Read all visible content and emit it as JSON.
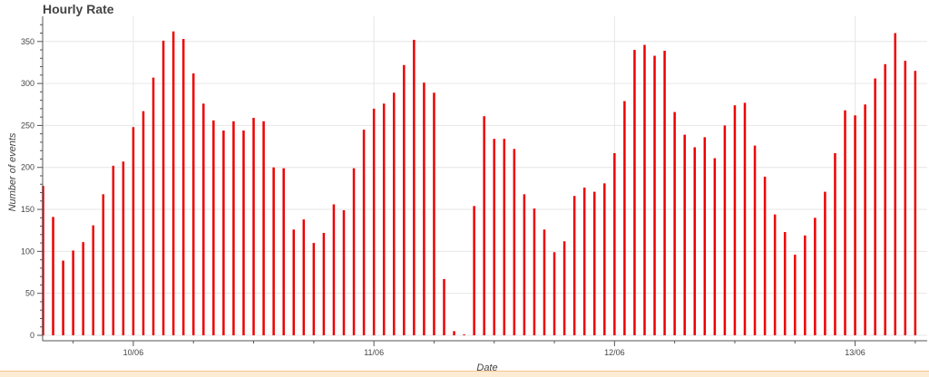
{
  "chart_data": {
    "type": "bar",
    "title": "Hourly Rate",
    "xlabel": "Date",
    "ylabel": "Number of events",
    "ylim": [
      0,
      380
    ],
    "yticks": [
      0,
      50,
      100,
      150,
      200,
      250,
      300,
      350
    ],
    "xticks": [
      {
        "label": "10/06",
        "index": 9
      },
      {
        "label": "11/06",
        "index": 33
      },
      {
        "label": "12/06",
        "index": 57
      },
      {
        "label": "13/06",
        "index": 81
      }
    ],
    "grid": true,
    "bar_color": "#ee0000",
    "values": [
      178,
      141,
      89,
      101,
      111,
      131,
      168,
      202,
      207,
      248,
      267,
      307,
      351,
      362,
      353,
      312,
      276,
      256,
      244,
      255,
      244,
      259,
      255,
      200,
      199,
      126,
      138,
      110,
      122,
      156,
      149,
      199,
      245,
      270,
      276,
      289,
      322,
      352,
      301,
      289,
      67,
      5,
      1,
      154,
      261,
      234,
      234,
      222,
      168,
      151,
      126,
      99,
      112,
      166,
      176,
      171,
      181,
      217,
      279,
      340,
      346,
      333,
      339,
      266,
      239,
      224,
      236,
      211,
      250,
      274,
      277,
      226,
      189,
      144,
      123,
      96,
      119,
      140,
      171,
      217,
      268,
      262,
      275,
      306,
      323,
      360,
      327,
      315
    ]
  }
}
